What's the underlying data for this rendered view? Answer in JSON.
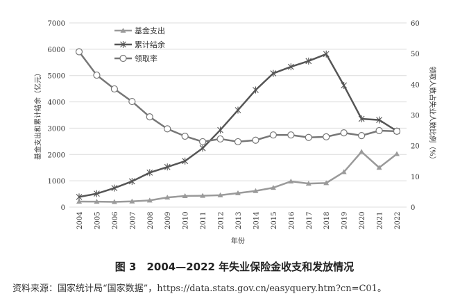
{
  "chart_data": {
    "type": "line",
    "title": "图 3　2004—2022 年失业保险金收支和发放情况",
    "source": "资料来源：国家统计局“国家数据”，https://data.stats.gov.cn/easyquery.htm?cn=C01。",
    "xlabel": "年份",
    "ylabel": "基金支出和累计结余（亿元）",
    "y2label": "领取人数占失业人数比例（%）",
    "ylim": [
      0,
      7000
    ],
    "y2lim": [
      0,
      60
    ],
    "yticks": [
      "0",
      "1000",
      "2000",
      "3000",
      "4000",
      "5000",
      "6000",
      "7000"
    ],
    "y2ticks": [
      "0",
      "10",
      "20",
      "30",
      "40",
      "50",
      "60"
    ],
    "grid": true,
    "legend": "top-left",
    "categories": [
      "2004",
      "2005",
      "2006",
      "2007",
      "2008",
      "2009",
      "2010",
      "2011",
      "2012",
      "2013",
      "2014",
      "2015",
      "2016",
      "2017",
      "2018",
      "2019",
      "2020",
      "2021",
      "2022"
    ],
    "series": [
      {
        "name": "基金支出",
        "axis": "left",
        "marker": "triangle",
        "color": "#9a9a9a",
        "values": [
          211,
          207,
          198,
          218,
          254,
          367,
          423,
          433,
          451,
          532,
          615,
          737,
          976,
          894,
          915,
          1333,
          2103,
          1500,
          2020
        ]
      },
      {
        "name": "累计结余",
        "axis": "left",
        "marker": "star",
        "color": "#555555",
        "values": [
          386,
          511,
          724,
          979,
          1310,
          1524,
          1750,
          2240,
          2930,
          3686,
          4451,
          5083,
          5333,
          5552,
          5817,
          4625,
          3354,
          3313,
          2891
        ]
      },
      {
        "name": "领取率",
        "axis": "right",
        "marker": "circle",
        "color": "#777777",
        "values": [
          50.6,
          43.0,
          38.5,
          34.4,
          29.4,
          25.5,
          23.1,
          21.3,
          22.2,
          21.3,
          21.8,
          23.5,
          23.5,
          22.7,
          22.9,
          24.2,
          23.3,
          24.9,
          24.7
        ]
      }
    ]
  }
}
